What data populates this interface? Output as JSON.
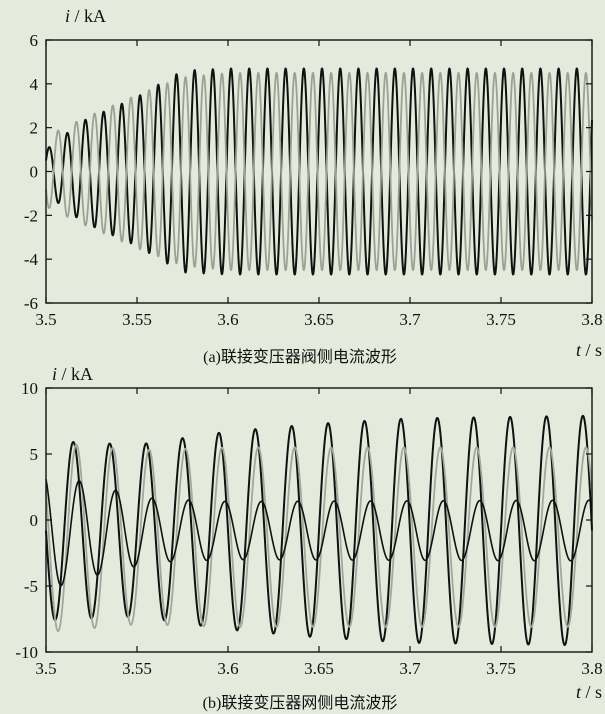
{
  "chart_data": [
    {
      "type": "line",
      "panel": "a",
      "caption": "(a)联接变压器阀侧电流波形",
      "ylabel_var": "i",
      "ylabel_unit": " / kA",
      "xlabel_var": "t",
      "xlabel_unit": " / s",
      "xlim": [
        3.5,
        3.8
      ],
      "ylim": [
        -6,
        6
      ],
      "xticks": [
        3.5,
        3.55,
        3.6,
        3.65,
        3.7,
        3.75,
        3.8
      ],
      "xtick_labels": [
        "3.5",
        "3.55",
        "3.6",
        "3.65",
        "3.7",
        "3.75",
        "3.8"
      ],
      "yticks": [
        -6,
        -4,
        -2,
        0,
        2,
        4,
        6
      ],
      "ytick_labels": [
        "-6",
        "-4",
        "-2",
        "0",
        "2",
        "4",
        "6"
      ],
      "grid": false,
      "series": [
        {
          "color": "#111111",
          "width": 2.0,
          "freq_hz": 100,
          "phase_deg": 30,
          "offset": 0,
          "amplitude_env": [
            [
              3.5,
              1.0
            ],
            [
              3.52,
              2.3
            ],
            [
              3.55,
              3.4
            ],
            [
              3.575,
              4.6
            ],
            [
              3.6,
              4.7
            ],
            [
              3.8,
              4.7
            ]
          ]
        },
        {
          "color": "#9aa196",
          "width": 1.8,
          "freq_hz": 100,
          "phase_deg": 210,
          "offset": 0,
          "amplitude_env": [
            [
              3.5,
              1.6
            ],
            [
              3.52,
              2.4
            ],
            [
              3.55,
              3.5
            ],
            [
              3.575,
              4.3
            ],
            [
              3.6,
              4.5
            ],
            [
              3.8,
              4.5
            ]
          ]
        }
      ]
    },
    {
      "type": "line",
      "panel": "b",
      "caption": "(b)联接变压器网侧电流波形",
      "ylabel_var": "i",
      "ylabel_unit": " / kA",
      "xlabel_var": "t",
      "xlabel_unit": " / s",
      "xlim": [
        3.5,
        3.8
      ],
      "ylim": [
        -10,
        10
      ],
      "xticks": [
        3.5,
        3.55,
        3.6,
        3.65,
        3.7,
        3.75,
        3.8
      ],
      "xtick_labels": [
        "3.5",
        "3.55",
        "3.6",
        "3.65",
        "3.7",
        "3.75",
        "3.8"
      ],
      "yticks": [
        -10,
        -5,
        0,
        5,
        10
      ],
      "ytick_labels": [
        "-10",
        "-5",
        "0",
        "5",
        "10"
      ],
      "grid": false,
      "series": [
        {
          "color": "#111111",
          "width": 2.0,
          "freq_hz": 50,
          "phase_deg": 180,
          "offset": -0.8,
          "amplitude_env": [
            [
              3.5,
              6.8
            ],
            [
              3.55,
              6.5
            ],
            [
              3.6,
              7.5
            ],
            [
              3.65,
              8.1
            ],
            [
              3.7,
              8.5
            ],
            [
              3.8,
              8.7
            ]
          ]
        },
        {
          "color": "#a2a89c",
          "width": 1.8,
          "freq_hz": 50,
          "phase_deg": 150,
          "offset": -1.3,
          "amplitude_env": [
            [
              3.5,
              7.2
            ],
            [
              3.55,
              6.6
            ],
            [
              3.6,
              6.8
            ],
            [
              3.65,
              6.8
            ],
            [
              3.7,
              6.8
            ],
            [
              3.8,
              6.8
            ]
          ]
        },
        {
          "color": "#111111",
          "width": 1.6,
          "freq_hz": 50,
          "phase_deg": 120,
          "offset": -0.8,
          "amplitude_env": [
            [
              3.5,
              4.5
            ],
            [
              3.53,
              3.3
            ],
            [
              3.56,
              2.4
            ],
            [
              3.6,
              2.2
            ],
            [
              3.8,
              2.3
            ]
          ]
        }
      ]
    }
  ]
}
